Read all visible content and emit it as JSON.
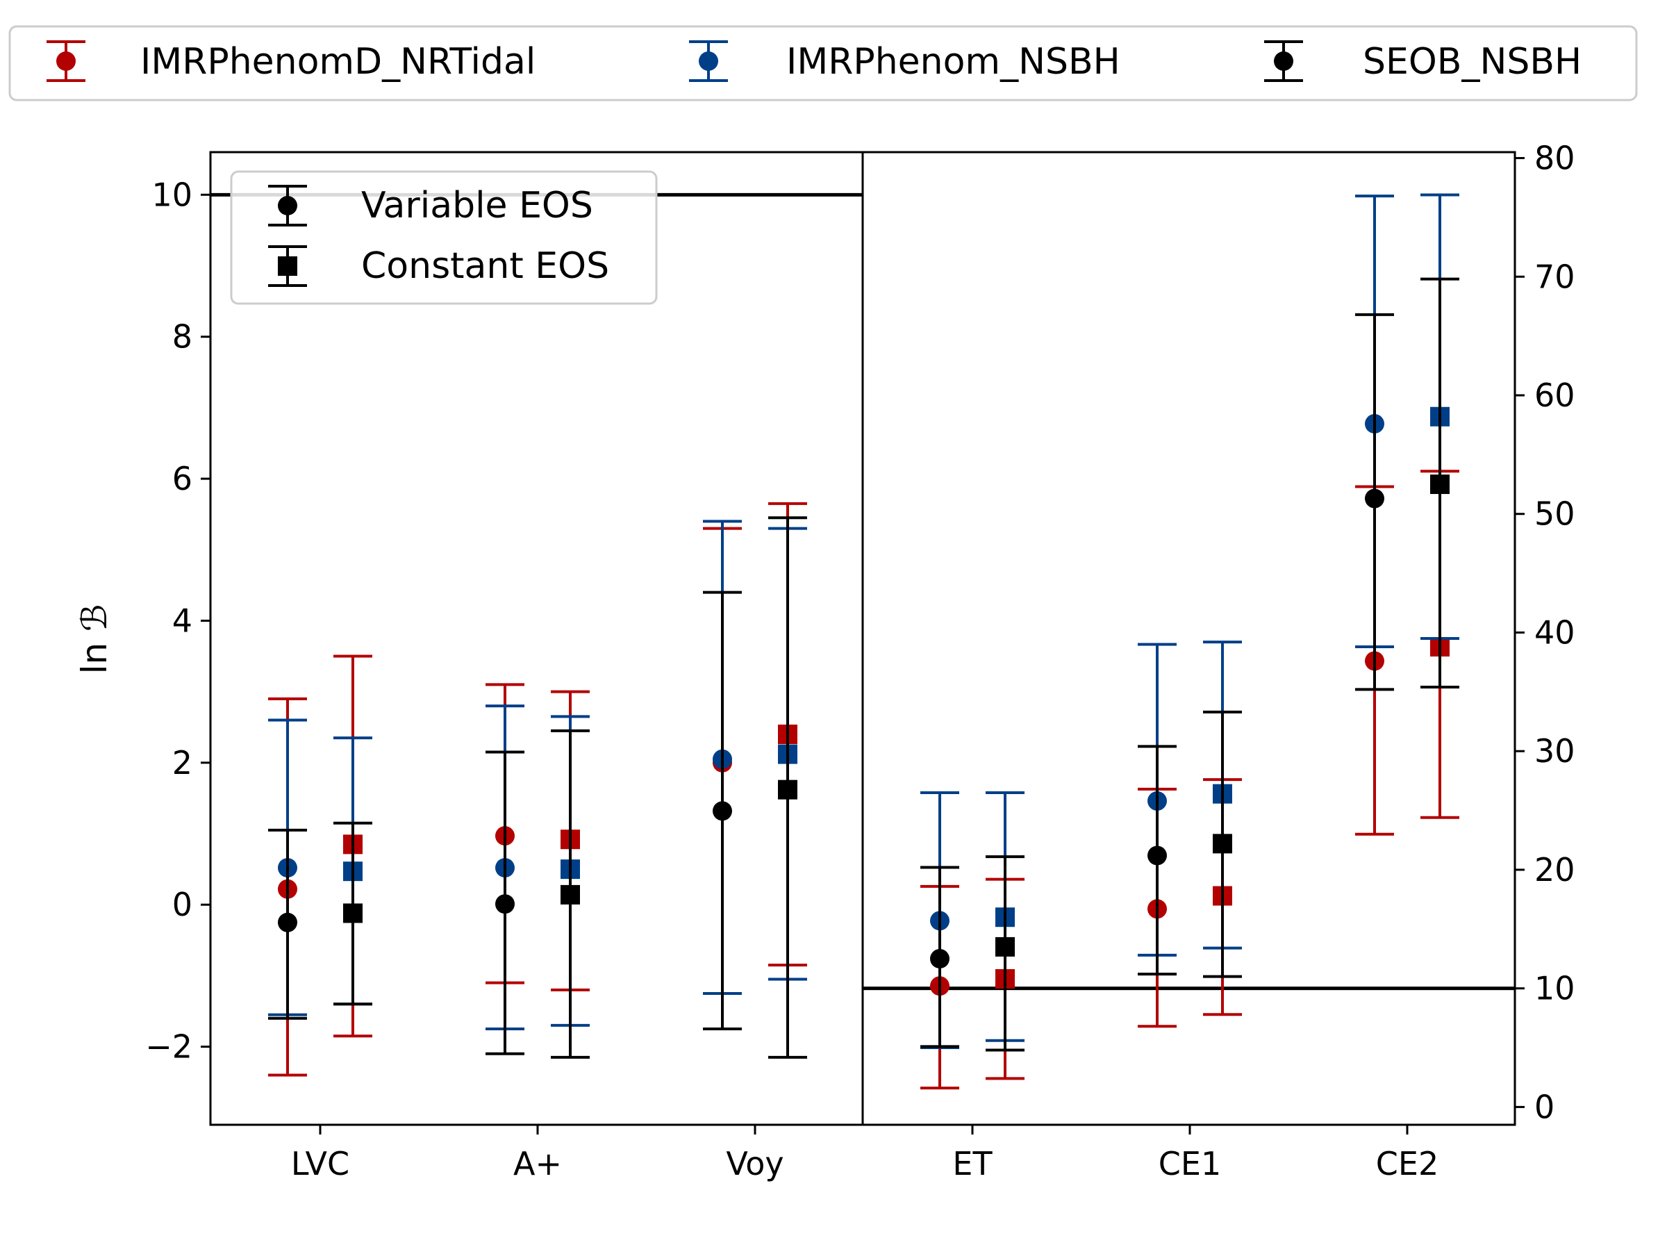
{
  "chart_data": {
    "type": "errorbar",
    "categories": [
      "LVC",
      "A+",
      "Voy",
      "ET",
      "CE1",
      "CE2"
    ],
    "ylabel": "ln ℬ",
    "left_panel": {
      "categories": [
        "LVC",
        "A+",
        "Voy"
      ],
      "ylim": [
        -3.1,
        10.6
      ],
      "yticks": [
        -2,
        0,
        2,
        4,
        6,
        8,
        10
      ],
      "yticklabels": [
        "−2",
        "0",
        "2",
        "4",
        "6",
        "8",
        "10"
      ],
      "threshold": 10
    },
    "right_panel": {
      "categories": [
        "ET",
        "CE1",
        "CE2"
      ],
      "ylim": [
        -1.5,
        80.5
      ],
      "yticks": [
        0,
        10,
        20,
        30,
        40,
        50,
        60,
        70,
        80
      ],
      "yticklabels": [
        "0",
        "10",
        "20",
        "30",
        "40",
        "50",
        "60",
        "70",
        "80"
      ],
      "threshold": 10
    },
    "eos_legend": {
      "placement": "upper-left of left panel",
      "entries": [
        {
          "label": "Variable EOS",
          "marker": "circle"
        },
        {
          "label": "Constant EOS",
          "marker": "square"
        }
      ]
    },
    "series": [
      {
        "name": "IMRPhenomD_NRTidal",
        "color": "#b30000",
        "variable": {
          "value": [
            0.22,
            0.97,
            2.0,
            10.2,
            16.7,
            37.6
          ],
          "low": [
            -2.4,
            -1.1,
            -1.25,
            1.6,
            6.8,
            23.0
          ],
          "high": [
            2.9,
            3.1,
            5.3,
            18.6,
            26.8,
            52.3
          ]
        },
        "constant": {
          "value": [
            0.85,
            0.92,
            2.4,
            10.8,
            17.8,
            38.8
          ],
          "low": [
            -1.85,
            -1.2,
            -0.85,
            2.4,
            7.8,
            24.4
          ],
          "high": [
            3.5,
            3.0,
            5.65,
            19.2,
            27.6,
            53.6
          ]
        }
      },
      {
        "name": "IMRPhenom_NSBH",
        "color": "#003f87",
        "variable": {
          "value": [
            0.52,
            0.52,
            2.05,
            15.7,
            25.8,
            57.6
          ],
          "low": [
            -1.55,
            -1.75,
            -1.25,
            5.0,
            12.8,
            38.8
          ],
          "high": [
            2.6,
            2.8,
            5.4,
            26.5,
            39.0,
            76.8
          ]
        },
        "constant": {
          "value": [
            0.47,
            0.5,
            2.12,
            16.0,
            26.4,
            58.2
          ],
          "low": [
            -1.4,
            -1.7,
            -1.05,
            5.6,
            13.4,
            39.5
          ],
          "high": [
            2.35,
            2.65,
            5.3,
            26.5,
            39.2,
            76.9
          ]
        }
      },
      {
        "name": "SEOB_NSBH",
        "color": "#000000",
        "variable": {
          "value": [
            -0.25,
            0.01,
            1.32,
            12.5,
            21.2,
            51.3
          ],
          "low": [
            -1.6,
            -2.1,
            -1.75,
            5.1,
            11.2,
            35.2
          ],
          "high": [
            1.05,
            2.15,
            4.4,
            20.2,
            30.4,
            66.8
          ]
        },
        "constant": {
          "value": [
            -0.12,
            0.14,
            1.62,
            13.5,
            22.2,
            52.5
          ],
          "low": [
            -1.4,
            -2.15,
            -2.15,
            4.8,
            11.0,
            35.4
          ],
          "high": [
            1.15,
            2.45,
            5.45,
            21.1,
            33.3,
            69.8
          ]
        }
      }
    ]
  }
}
